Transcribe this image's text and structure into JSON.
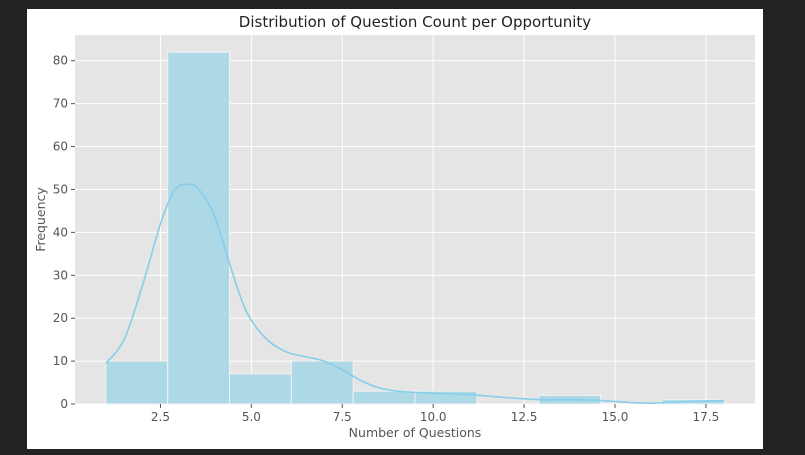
{
  "chart_data": {
    "type": "bar",
    "title": "Distribution of Question Count per Opportunity",
    "xlabel": "Number of Questions",
    "ylabel": "Frequency",
    "xlim": [
      0.15,
      18.85
    ],
    "ylim": [
      0,
      86
    ],
    "grid": true,
    "bins": [
      {
        "x0": 1.0,
        "x1": 2.7,
        "count": 10
      },
      {
        "x0": 2.7,
        "x1": 4.4,
        "count": 82
      },
      {
        "x0": 4.4,
        "x1": 6.1,
        "count": 7
      },
      {
        "x0": 6.1,
        "x1": 7.8,
        "count": 10
      },
      {
        "x0": 7.8,
        "x1": 9.5,
        "count": 3
      },
      {
        "x0": 9.5,
        "x1": 11.2,
        "count": 3
      },
      {
        "x0": 11.2,
        "x1": 12.9,
        "count": 0
      },
      {
        "x0": 12.9,
        "x1": 14.6,
        "count": 2
      },
      {
        "x0": 14.6,
        "x1": 16.3,
        "count": 0
      },
      {
        "x0": 16.3,
        "x1": 18.0,
        "count": 1
      }
    ],
    "kde": {
      "x": [
        1.0,
        1.5,
        2.0,
        2.5,
        2.8,
        3.0,
        3.3,
        3.5,
        3.8,
        4.0,
        4.3,
        4.7,
        5.0,
        5.5,
        6.0,
        6.5,
        7.0,
        7.5,
        8.0,
        8.5,
        9.0,
        10.0,
        11.0,
        12.0,
        13.0,
        14.0,
        15.0,
        15.5,
        16.0,
        16.5,
        17.0,
        18.0
      ],
      "y": [
        9.5,
        15.0,
        27.5,
        42.0,
        48.5,
        50.8,
        51.2,
        50.5,
        47.0,
        43.5,
        35.5,
        25.0,
        19.5,
        14.5,
        12.0,
        11.0,
        10.0,
        8.0,
        5.5,
        3.8,
        3.0,
        2.5,
        2.2,
        1.5,
        1.0,
        1.0,
        0.6,
        0.3,
        0.2,
        0.4,
        0.6,
        0.8
      ]
    },
    "xticks": [
      2.5,
      5.0,
      7.5,
      10.0,
      12.5,
      15.0,
      17.5
    ],
    "xtick_labels": [
      "2.5",
      "5.0",
      "7.5",
      "10.0",
      "12.5",
      "15.0",
      "17.5"
    ],
    "yticks": [
      0,
      10,
      20,
      30,
      40,
      50,
      60,
      70,
      80
    ],
    "ytick_labels": [
      "0",
      "10",
      "20",
      "30",
      "40",
      "50",
      "60",
      "70",
      "80"
    ],
    "colors": {
      "bar_fill": "#add8e6",
      "bar_edge": "#f2f2f2",
      "kde_line": "#87ceeb",
      "plot_bg": "#e5e5e5",
      "grid": "#ffffff"
    }
  }
}
